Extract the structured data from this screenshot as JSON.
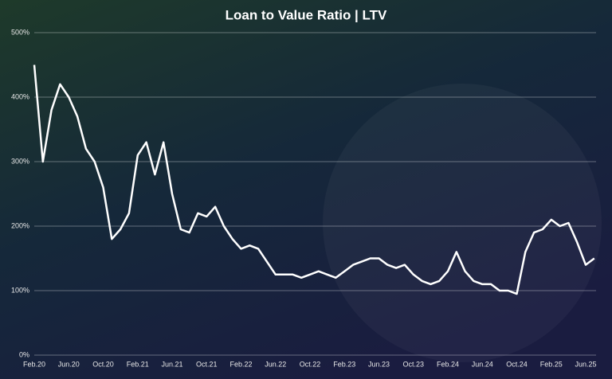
{
  "chart_data": {
    "type": "line",
    "title": "Loan to Value Ratio  |  LTV",
    "categories": [
      "Feb.20",
      null,
      null,
      null,
      "Jun.20",
      null,
      null,
      null,
      "Oct.20",
      null,
      null,
      null,
      "Feb.21",
      null,
      null,
      null,
      "Jun.21",
      null,
      null,
      null,
      "Oct.21",
      null,
      null,
      null,
      "Feb.22",
      null,
      null,
      null,
      "Jun.22",
      null,
      null,
      null,
      "Oct.22",
      null,
      null,
      null,
      "Feb.23",
      null,
      null,
      null,
      "Jun.23",
      null,
      null,
      null,
      "Oct.23",
      null,
      null,
      null,
      "Feb.24",
      null,
      null,
      null,
      "Jun.24",
      null,
      null,
      null,
      "Oct.24",
      null,
      null,
      null,
      "Feb.25",
      null,
      null,
      null,
      "Jun.25",
      null
    ],
    "values": [
      450,
      300,
      380,
      420,
      400,
      370,
      320,
      300,
      260,
      180,
      195,
      220,
      310,
      330,
      280,
      330,
      250,
      195,
      190,
      220,
      215,
      230,
      200,
      180,
      165,
      170,
      165,
      145,
      125,
      125,
      125,
      120,
      125,
      130,
      125,
      120,
      130,
      140,
      145,
      150,
      150,
      140,
      135,
      140,
      125,
      115,
      110,
      115,
      130,
      160,
      130,
      115,
      110,
      110,
      100,
      100,
      95,
      160,
      190,
      195,
      210,
      200,
      205,
      175,
      140,
      150
    ],
    "color": "#ffffff",
    "ylim": [
      0,
      500
    ],
    "yticks": [
      {
        "value": 0,
        "label": "0%"
      },
      {
        "value": 100,
        "label": "100%"
      },
      {
        "value": 200,
        "label": "200%"
      },
      {
        "value": 300,
        "label": "300%"
      },
      {
        "value": 400,
        "label": "400%"
      },
      {
        "value": 500,
        "label": "500%"
      }
    ],
    "grid": true
  }
}
